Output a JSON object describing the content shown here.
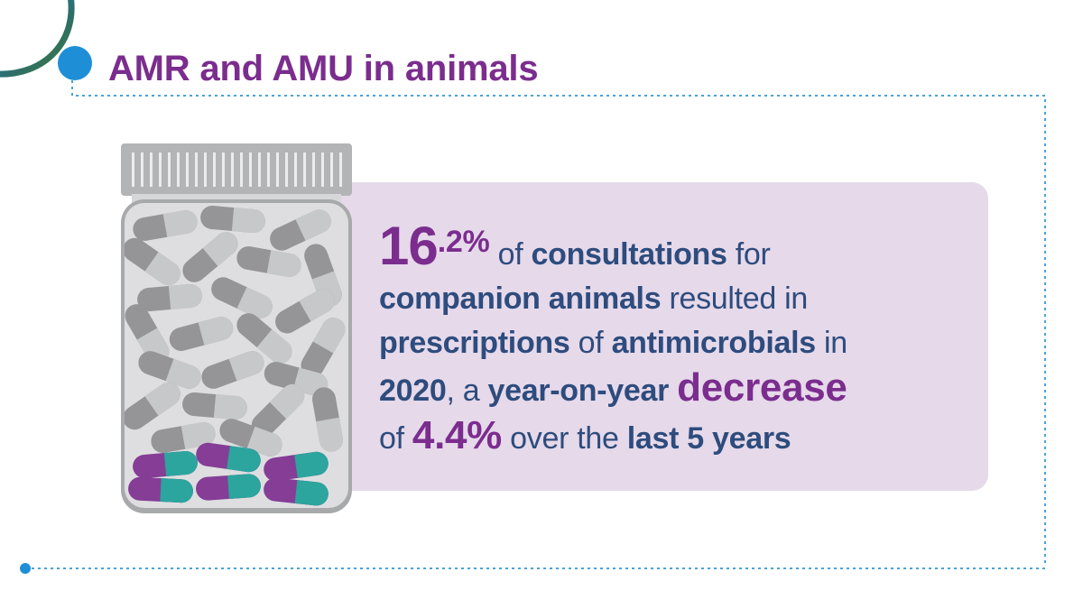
{
  "heading": {
    "title": "AMR and AMU in animals"
  },
  "statement": {
    "big_integer": "16",
    "big_decimal": ".2%",
    "t1": " of ",
    "b1": "consultations",
    "t2": " for ",
    "b2": "companion animals",
    "t3": " resulted in ",
    "b3": "prescriptions",
    "t4": " of ",
    "b4": "antimicrobials",
    "t5": " in ",
    "b5": "2020",
    "t6": ", a ",
    "b6": "year-on-year",
    "t7": " ",
    "decrease": "decrease",
    "t8": "of ",
    "pct": "4.4%",
    "t9": " over the ",
    "b7": "last 5 years"
  },
  "colors": {
    "purple": "#7b2d8e",
    "navy": "#2e4c7d",
    "panel": "#e6d9ea",
    "accent_blue": "#1e8fd6",
    "teal": "#1a9e96",
    "capsule_gray": "#9b9c9e"
  }
}
